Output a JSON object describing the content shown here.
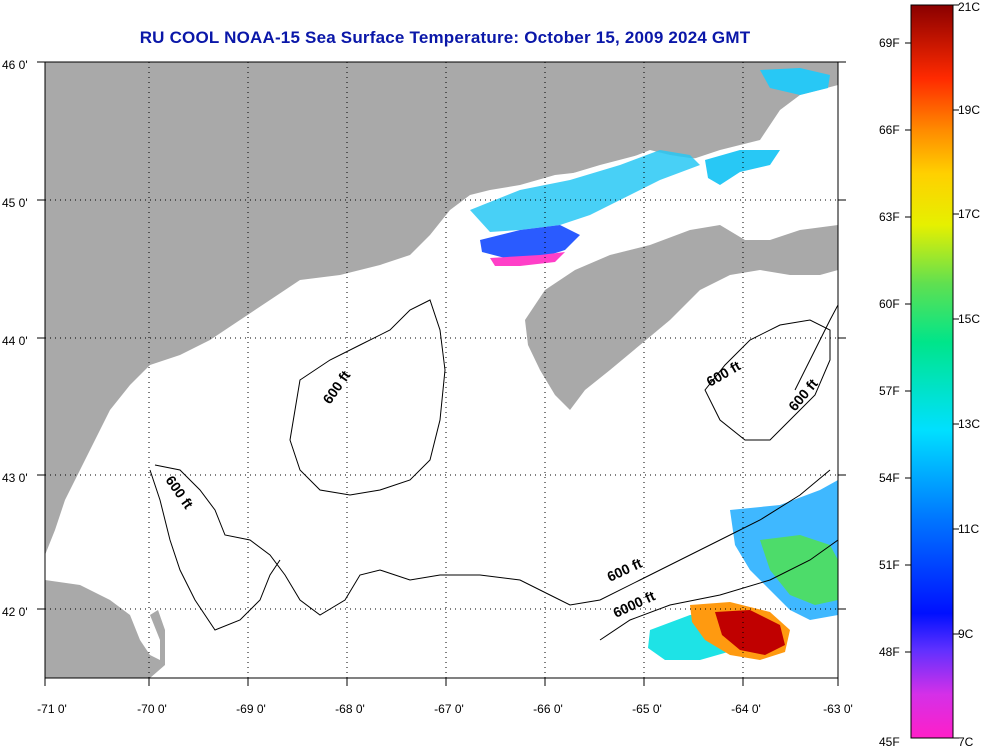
{
  "title": "RU COOL  NOAA-15  Sea Surface Temperature:  October 15, 2009 2024 GMT",
  "map": {
    "lon_ticks": [
      "-71 0'",
      "-70 0'",
      "-69 0'",
      "-68 0'",
      "-67 0'",
      "-66 0'",
      "-65 0'",
      "-64 0'",
      "-63 0'"
    ],
    "lat_ticks": [
      "46 0'",
      "45 0'",
      "44 0'",
      "43 0'",
      "42 0'"
    ],
    "contour_labels": [
      {
        "id": "c1",
        "text": "600 ft"
      },
      {
        "id": "c2",
        "text": "600 ft"
      },
      {
        "id": "c3",
        "text": "600 ft"
      },
      {
        "id": "c4",
        "text": "600 ft"
      },
      {
        "id": "c5",
        "text": "6000 ft"
      },
      {
        "id": "c6",
        "text": "600 ft"
      }
    ],
    "colors": {
      "land": "#a9a9a9",
      "ocean": "#ffffff",
      "contour": "#000000",
      "grid": "#000000"
    }
  },
  "colorbar": {
    "f_labels": [
      "69F",
      "66F",
      "63F",
      "60F",
      "57F",
      "54F",
      "51F",
      "48F",
      "45F"
    ],
    "c_labels": [
      "21C",
      "19C",
      "17C",
      "15C",
      "13C",
      "11C",
      "9C",
      "7C"
    ],
    "range_c": [
      7,
      21
    ],
    "range_f": [
      45,
      69
    ]
  }
}
